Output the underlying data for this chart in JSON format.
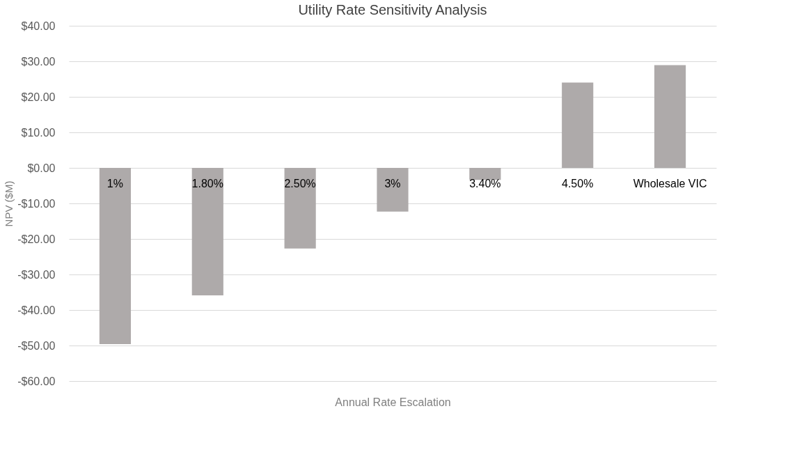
{
  "chart_data": {
    "type": "bar",
    "title": "Utility Rate Sensitivity Analysis",
    "xlabel": "Annual Rate Escalation",
    "ylabel": "NPV ($M)",
    "categories": [
      "1%",
      "1.80%",
      "2.50%",
      "3%",
      "3.40%",
      "4.50%",
      "Wholesale VIC"
    ],
    "values": [
      -49.6,
      -35.9,
      -22.7,
      -12.3,
      -3.4,
      24.0,
      28.9
    ],
    "color": "#aeaaaa",
    "ylim": [
      -60,
      40
    ],
    "yticks": [
      {
        "value": -60,
        "label": "-$60.00"
      },
      {
        "value": -50,
        "label": "-$50.00"
      },
      {
        "value": -40,
        "label": "-$40.00"
      },
      {
        "value": -30,
        "label": "-$30.00"
      },
      {
        "value": -20,
        "label": "-$20.00"
      },
      {
        "value": -10,
        "label": "-$10.00"
      },
      {
        "value": 0,
        "label": "$0.00"
      },
      {
        "value": 10,
        "label": "$10.00"
      },
      {
        "value": 20,
        "label": "$20.00"
      },
      {
        "value": 30,
        "label": "$30.00"
      },
      {
        "value": 40,
        "label": "$40.00"
      }
    ],
    "grid": "y"
  }
}
